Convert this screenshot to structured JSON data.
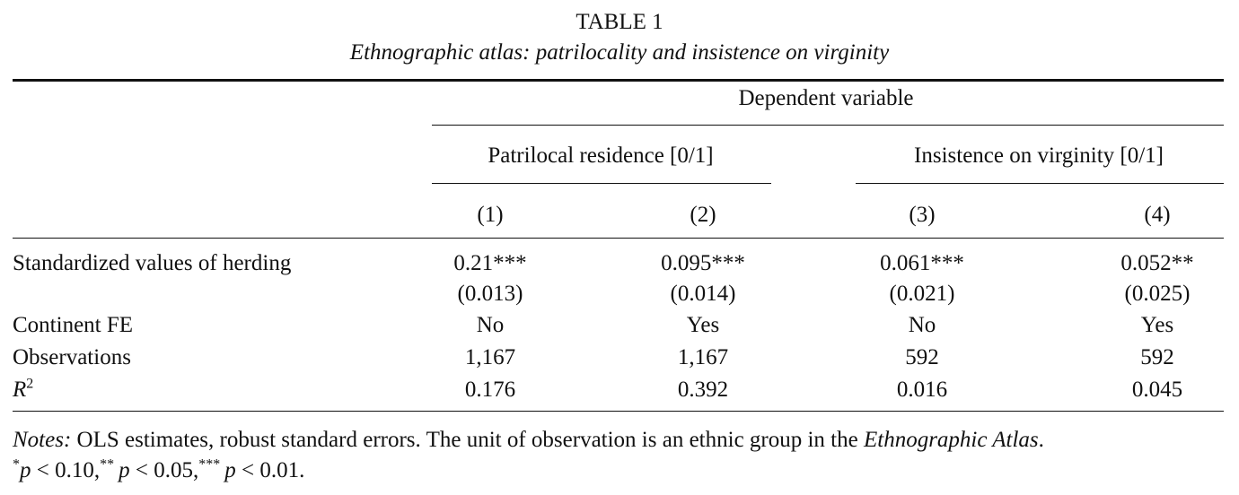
{
  "table": {
    "title": "TABLE 1",
    "subtitle": "Ethnographic atlas: patrilocality and insistence on virginity",
    "dependent_variable_label": "Dependent variable",
    "group_headers": [
      "Patrilocal residence [0/1]",
      "Insistence on virginity [0/1]"
    ],
    "column_numbers": [
      "(1)",
      "(2)",
      "(3)",
      "(4)"
    ],
    "rows": {
      "herding": {
        "label": "Standardized values of herding",
        "coefficients": [
          "0.21***",
          "0.095***",
          "0.061***",
          "0.052**"
        ],
        "std_errors": [
          "(0.013)",
          "(0.014)",
          "(0.021)",
          "(0.025)"
        ]
      },
      "continent_fe": {
        "label": "Continent FE",
        "values": [
          "No",
          "Yes",
          "No",
          "Yes"
        ]
      },
      "observations": {
        "label": "Observations",
        "values": [
          "1,167",
          "1,167",
          "592",
          "592"
        ]
      },
      "r2": {
        "label_base": "R",
        "label_exp": "2",
        "values": [
          "0.176",
          "0.392",
          "0.016",
          "0.045"
        ]
      }
    },
    "notes": {
      "prefix": "Notes:",
      "text_before_atlas": " OLS estimates, robust standard errors. The unit of observation is an ethnic group in the ",
      "atlas_name": "Ethnographic Atlas",
      "text_after_atlas": ".",
      "sig_1_star": "*",
      "sig_1_p": "p",
      "sig_1_rest": " < 0.10,",
      "sig_2_star": "**",
      "sig_2_p": "p",
      "sig_2_rest": " < 0.05,",
      "sig_3_star": "***",
      "sig_3_p": "p",
      "sig_3_rest": " < 0.01."
    }
  }
}
